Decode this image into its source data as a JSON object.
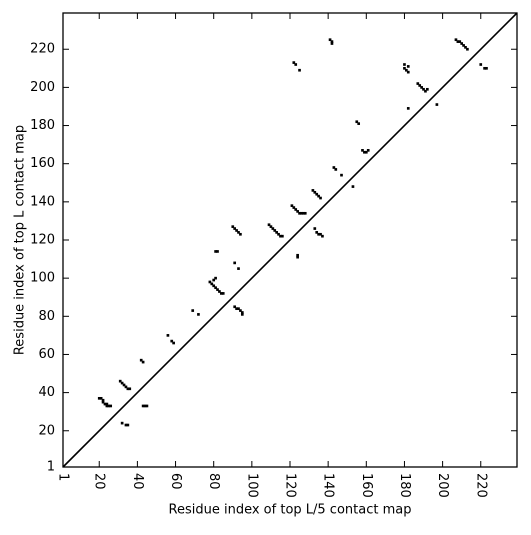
{
  "chart_data": {
    "type": "scatter",
    "xlabel": "Residue index of top L/5 contact map",
    "ylabel": "Residue index of top L contact map",
    "xlim": [
      1,
      239
    ],
    "ylim": [
      1,
      239
    ],
    "xticks": [
      1,
      20,
      40,
      60,
      80,
      100,
      120,
      140,
      160,
      180,
      200,
      220
    ],
    "yticks": [
      1,
      20,
      40,
      60,
      80,
      100,
      120,
      140,
      160,
      180,
      200,
      220
    ],
    "diagonal": true,
    "color": "#000000",
    "x": [
      20,
      21,
      22,
      22,
      23,
      24,
      24,
      25,
      26,
      31,
      32,
      33,
      34,
      35,
      36,
      32,
      34,
      35,
      42,
      43,
      43,
      44,
      45,
      56,
      58,
      59,
      69,
      72,
      78,
      79,
      80,
      81,
      82,
      83,
      84,
      85,
      80,
      81,
      81,
      82,
      91,
      92,
      93,
      94,
      95,
      95,
      91,
      93,
      90,
      91,
      92,
      93,
      94,
      109,
      110,
      111,
      112,
      113,
      114,
      115,
      116,
      121,
      122,
      123,
      124,
      125,
      126,
      127,
      128,
      124,
      124,
      132,
      133,
      134,
      135,
      136,
      133,
      134,
      135,
      136,
      137,
      141,
      142,
      142,
      143,
      144,
      147,
      153,
      155,
      156,
      158,
      159,
      160,
      161,
      122,
      123,
      125,
      180,
      180,
      181,
      182,
      182,
      182,
      187,
      188,
      189,
      190,
      191,
      192,
      197,
      207,
      208,
      209,
      210,
      211,
      212,
      213,
      220,
      222,
      223
    ],
    "y": [
      37,
      37,
      36,
      35,
      34,
      34,
      33,
      33,
      33,
      46,
      45,
      44,
      43,
      42,
      42,
      24,
      23,
      23,
      57,
      56,
      33,
      33,
      33,
      70,
      67,
      66,
      83,
      81,
      98,
      97,
      96,
      95,
      94,
      93,
      92,
      92,
      99,
      100,
      114,
      114,
      85,
      84,
      84,
      83,
      82,
      81,
      108,
      105,
      127,
      126,
      125,
      124,
      123,
      128,
      127,
      126,
      125,
      124,
      123,
      122,
      122,
      138,
      137,
      136,
      135,
      134,
      134,
      134,
      134,
      112,
      111,
      146,
      145,
      144,
      143,
      142,
      126,
      124,
      123,
      123,
      122,
      225,
      224,
      223,
      158,
      157,
      154,
      148,
      182,
      181,
      167,
      166,
      166,
      167,
      213,
      212,
      209,
      212,
      210,
      209,
      208,
      211,
      189,
      202,
      201,
      200,
      199,
      198,
      199,
      191,
      225,
      224,
      224,
      223,
      222,
      221,
      220,
      212,
      210,
      210
    ]
  }
}
